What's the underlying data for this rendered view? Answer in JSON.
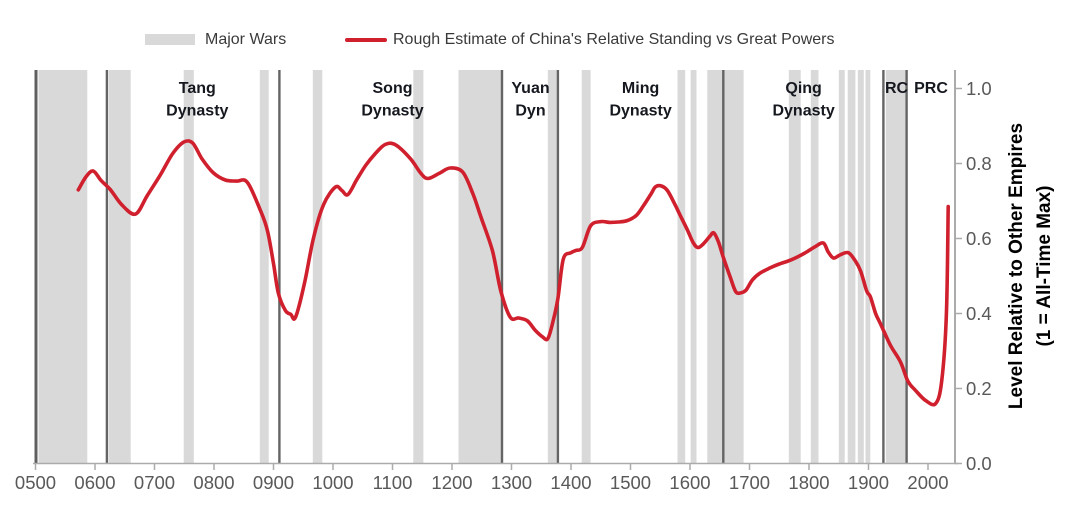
{
  "legend": {
    "major_wars_label": "Major Wars",
    "line_label": "Rough Estimate of China's Relative Standing vs Great Powers"
  },
  "colors": {
    "line_red": "#d0202e",
    "war_band": "#d9d9d9",
    "boundary_line": "#646464",
    "plot_border_left": "#5f5f5f",
    "plot_border_right": "#ababab",
    "axis": "#ababab",
    "tick_label": "#595959",
    "dynasty_label": "#15181e",
    "legend_text": "#3a3a3a",
    "y_title": "#000000"
  },
  "chart_data": {
    "type": "line",
    "title": "",
    "x_axis": {
      "range": [
        500,
        2047
      ],
      "ticks": [
        500,
        600,
        700,
        800,
        900,
        1000,
        1100,
        1200,
        1300,
        1400,
        1500,
        1600,
        1700,
        1800,
        1900,
        2000
      ],
      "tick_labels": [
        "0500",
        "0600",
        "0700",
        "0800",
        "0900",
        "1000",
        "1100",
        "1200",
        "1300",
        "1400",
        "1500",
        "1600",
        "1700",
        "1800",
        "1900",
        "2000"
      ]
    },
    "y_axis": {
      "range": [
        0,
        1
      ],
      "ticks": [
        0,
        0.2,
        0.4,
        0.6,
        0.8,
        1.0
      ],
      "tick_labels": [
        "0.0",
        "0.2",
        "0.4",
        "0.6",
        "0.8",
        "1.0"
      ],
      "title_lines": [
        "Level Relative to Other Empires",
        "(1 = All-Time Max)"
      ]
    },
    "war_bands": [
      [
        505,
        587
      ],
      [
        623,
        660
      ],
      [
        749,
        766
      ],
      [
        877,
        892
      ],
      [
        966,
        982
      ],
      [
        1135,
        1152
      ],
      [
        1211,
        1283
      ],
      [
        1361,
        1376
      ],
      [
        1418,
        1433
      ],
      [
        1579,
        1592
      ],
      [
        1601,
        1611
      ],
      [
        1629,
        1690
      ],
      [
        1766,
        1786
      ],
      [
        1803,
        1816
      ],
      [
        1850,
        1860
      ],
      [
        1865,
        1878
      ],
      [
        1882,
        1892
      ],
      [
        1895,
        1903
      ],
      [
        1929,
        1962
      ]
    ],
    "dynasty_boundaries": [
      620,
      910,
      1284,
      1378,
      1656,
      1925,
      1964
    ],
    "dynasty_labels": [
      {
        "year": 772,
        "lines": [
          "Tang",
          "Dynasty"
        ]
      },
      {
        "year": 1100,
        "lines": [
          "Song",
          "Dynasty"
        ]
      },
      {
        "year": 1332,
        "lines": [
          "Yuan",
          "Dyn"
        ]
      },
      {
        "year": 1517,
        "lines": [
          "Ming",
          "Dynasty"
        ]
      },
      {
        "year": 1791,
        "lines": [
          "Qing",
          "Dynasty"
        ]
      },
      {
        "year": 1947,
        "lines": [
          "RC"
        ]
      },
      {
        "year": 2005,
        "lines": [
          "PRC"
        ]
      }
    ],
    "series": [
      {
        "name": "Rough Estimate of China's Relative Standing vs Great Powers",
        "points": [
          [
            572,
            0.73
          ],
          [
            585,
            0.765
          ],
          [
            597,
            0.78
          ],
          [
            610,
            0.755
          ],
          [
            626,
            0.73
          ],
          [
            645,
            0.69
          ],
          [
            668,
            0.665
          ],
          [
            688,
            0.715
          ],
          [
            710,
            0.77
          ],
          [
            730,
            0.825
          ],
          [
            749,
            0.857
          ],
          [
            764,
            0.855
          ],
          [
            780,
            0.812
          ],
          [
            799,
            0.775
          ],
          [
            819,
            0.756
          ],
          [
            838,
            0.753
          ],
          [
            856,
            0.75
          ],
          [
            878,
            0.675
          ],
          [
            890,
            0.62
          ],
          [
            900,
            0.533
          ],
          [
            908,
            0.455
          ],
          [
            920,
            0.408
          ],
          [
            929,
            0.398
          ],
          [
            937,
            0.39
          ],
          [
            952,
            0.48
          ],
          [
            967,
            0.6
          ],
          [
            984,
            0.69
          ],
          [
            1004,
            0.737
          ],
          [
            1015,
            0.728
          ],
          [
            1025,
            0.717
          ],
          [
            1040,
            0.757
          ],
          [
            1055,
            0.795
          ],
          [
            1072,
            0.828
          ],
          [
            1088,
            0.851
          ],
          [
            1105,
            0.85
          ],
          [
            1130,
            0.813
          ],
          [
            1148,
            0.773
          ],
          [
            1160,
            0.76
          ],
          [
            1180,
            0.775
          ],
          [
            1197,
            0.788
          ],
          [
            1218,
            0.777
          ],
          [
            1235,
            0.72
          ],
          [
            1248,
            0.66
          ],
          [
            1268,
            0.567
          ],
          [
            1282,
            0.46
          ],
          [
            1298,
            0.39
          ],
          [
            1312,
            0.388
          ],
          [
            1327,
            0.38
          ],
          [
            1340,
            0.355
          ],
          [
            1352,
            0.338
          ],
          [
            1361,
            0.333
          ],
          [
            1370,
            0.38
          ],
          [
            1378,
            0.44
          ],
          [
            1387,
            0.545
          ],
          [
            1400,
            0.562
          ],
          [
            1408,
            0.568
          ],
          [
            1419,
            0.576
          ],
          [
            1433,
            0.634
          ],
          [
            1450,
            0.645
          ],
          [
            1465,
            0.643
          ],
          [
            1480,
            0.644
          ],
          [
            1495,
            0.648
          ],
          [
            1510,
            0.662
          ],
          [
            1522,
            0.688
          ],
          [
            1535,
            0.72
          ],
          [
            1542,
            0.738
          ],
          [
            1552,
            0.74
          ],
          [
            1562,
            0.728
          ],
          [
            1575,
            0.69
          ],
          [
            1584,
            0.66
          ],
          [
            1595,
            0.625
          ],
          [
            1605,
            0.59
          ],
          [
            1613,
            0.576
          ],
          [
            1622,
            0.585
          ],
          [
            1633,
            0.605
          ],
          [
            1640,
            0.615
          ],
          [
            1648,
            0.59
          ],
          [
            1656,
            0.55
          ],
          [
            1668,
            0.495
          ],
          [
            1677,
            0.458
          ],
          [
            1685,
            0.455
          ],
          [
            1694,
            0.462
          ],
          [
            1705,
            0.49
          ],
          [
            1718,
            0.508
          ],
          [
            1735,
            0.522
          ],
          [
            1750,
            0.532
          ],
          [
            1765,
            0.54
          ],
          [
            1777,
            0.548
          ],
          [
            1794,
            0.562
          ],
          [
            1810,
            0.578
          ],
          [
            1824,
            0.588
          ],
          [
            1832,
            0.565
          ],
          [
            1841,
            0.548
          ],
          [
            1852,
            0.556
          ],
          [
            1866,
            0.562
          ],
          [
            1878,
            0.54
          ],
          [
            1887,
            0.512
          ],
          [
            1897,
            0.46
          ],
          [
            1903,
            0.445
          ],
          [
            1912,
            0.4
          ],
          [
            1920,
            0.373
          ],
          [
            1937,
            0.315
          ],
          [
            1954,
            0.27
          ],
          [
            1966,
            0.22
          ],
          [
            1979,
            0.195
          ],
          [
            1996,
            0.168
          ],
          [
            2013,
            0.16
          ],
          [
            2023,
            0.22
          ],
          [
            2031,
            0.4
          ],
          [
            2034,
            0.685
          ]
        ]
      }
    ]
  }
}
